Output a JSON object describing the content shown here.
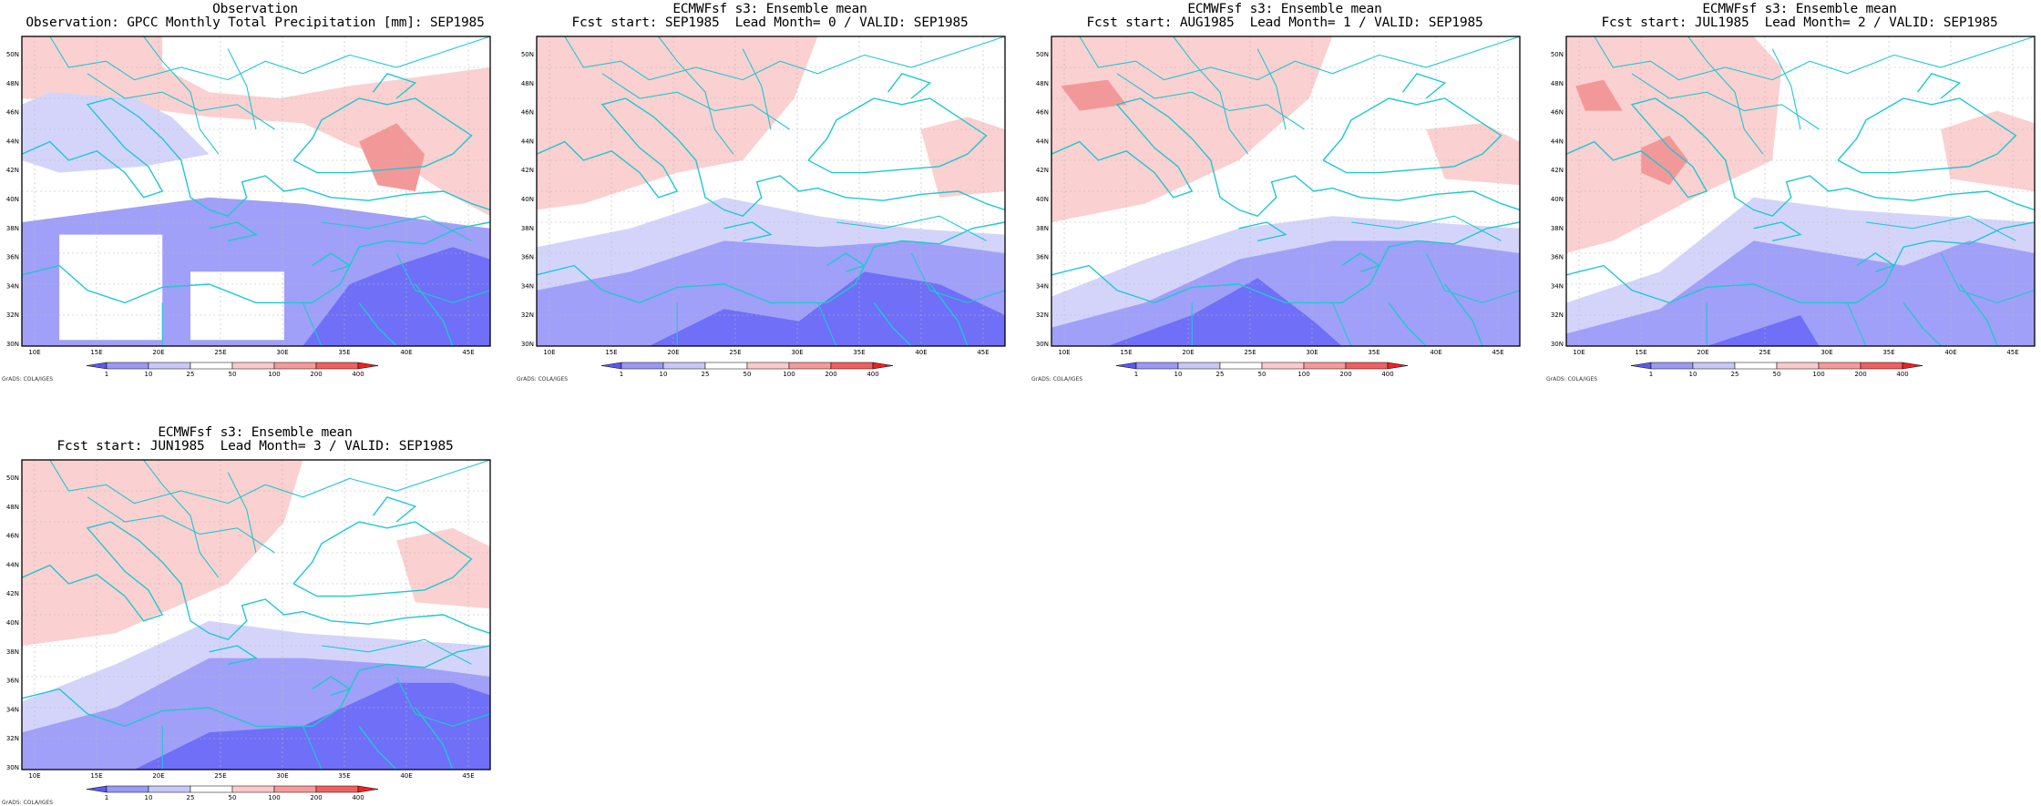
{
  "panels": [
    {
      "title1": "Observation",
      "title2": "Observation: GPCC Monthly Total Precipitation [mm]: SEP1985",
      "kind": "obs"
    },
    {
      "title1": "ECMWFsf s3: Ensemble mean",
      "title2": "Fcst start: SEP1985  Lead Month= 0 / VALID: SEP1985",
      "kind": "lead0"
    },
    {
      "title1": "ECMWFsf s3: Ensemble mean",
      "title2": "Fcst start: AUG1985  Lead Month= 1 / VALID: SEP1985",
      "kind": "lead1"
    },
    {
      "title1": "ECMWFsf s3: Ensemble mean",
      "title2": "Fcst start: JUL1985  Lead Month= 2 / VALID: SEP1985",
      "kind": "lead2"
    },
    {
      "title1": "ECMWFsf s3: Ensemble mean",
      "title2": "Fcst start: JUN1985  Lead Month= 3 / VALID: SEP1985",
      "kind": "lead3"
    }
  ],
  "lat_labels": [
    "50N",
    "48N",
    "46N",
    "44N",
    "42N",
    "40N",
    "38N",
    "36N",
    "34N",
    "32N",
    "30N"
  ],
  "lon_labels": [
    "10E",
    "15E",
    "20E",
    "25E",
    "30E",
    "35E",
    "40E",
    "45E"
  ],
  "colorbar": {
    "labels": [
      "1",
      "10",
      "25",
      "50",
      "100",
      "200",
      "400"
    ],
    "colors": [
      "#5a5af0",
      "#9a9af5",
      "#c8c8f8",
      "#ffffff",
      "#f9caca",
      "#f59a9a",
      "#f06060",
      "#ee2222"
    ]
  },
  "credit": "GrADS: COLA/IGES",
  "colors": {
    "coast": "#1ec8d2",
    "deep_blue": "#6f6ff8",
    "mid_blue": "#a0a0f8",
    "light_blue": "#d4d4fb",
    "light_red": "#fbd0d0",
    "mid_red": "#f39898"
  }
}
